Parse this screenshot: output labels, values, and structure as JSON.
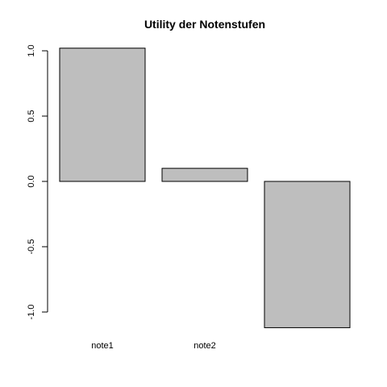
{
  "chart_data": {
    "type": "bar",
    "title": "Utility der Notenstufen",
    "categories": [
      "note1",
      "note2",
      ""
    ],
    "values": [
      1.02,
      0.1,
      -1.12
    ],
    "xlabel": "",
    "ylabel": "",
    "ylim": [
      -1.0,
      1.0
    ],
    "yticks": [
      -1.0,
      -0.5,
      0.0,
      0.5,
      1.0
    ],
    "ytick_labels": [
      "-1.0",
      "-0.5",
      "0.0",
      "0.5",
      "1.0"
    ],
    "bar_color": "#bebebe",
    "bar_border_color": "#000000",
    "grid": false,
    "legend": false
  }
}
